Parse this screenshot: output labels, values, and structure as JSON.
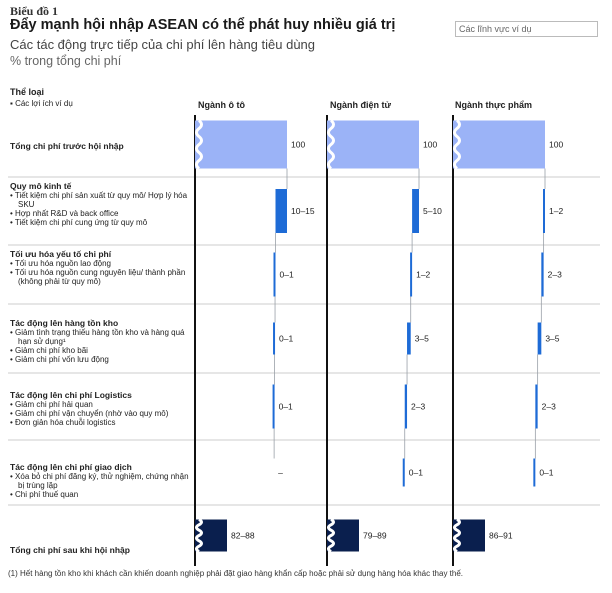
{
  "header": {
    "exhibit": "Biểu đồ 1",
    "title": "Đẩy mạnh hội nhập ASEAN có thể phát huy nhiều giá trị",
    "subtitle": "Các tác động trực tiếp của chi phí lên hàng tiêu dùng",
    "unit": "% trong tổng chi phí",
    "ref_box": "Các lĩnh vực ví dụ"
  },
  "legend": {
    "category": "Thể loại",
    "examples": "Các lợi ích ví dụ"
  },
  "rows": [
    {
      "title": "Tổng chi phí trước hội nhập",
      "bullets": []
    },
    {
      "title": "Quy mô kinh tế",
      "bullets": [
        "Tiết kiệm chi phí sản xuất từ quy mô/ Hợp lý hóa SKU",
        "Hợp nhất R&D và back office",
        "Tiết kiệm chi phí cung ứng từ quy mô"
      ]
    },
    {
      "title": "Tối ưu hóa yếu tố chi phí",
      "bullets": [
        "Tối ưu hóa nguồn lao động",
        "Tối ưu hóa nguồn cung nguyên liệu/ thành phần (không phải từ quy mô)"
      ]
    },
    {
      "title": "Tác động lên hàng tồn kho",
      "bullets": [
        "Giảm tình trạng thiếu hàng tồn kho và hàng quá hạn sử dụng¹",
        "Giảm chi phí kho bãi",
        "Giảm chi phí vốn lưu động"
      ]
    },
    {
      "title": "Tác động lên chi phí Logistics",
      "bullets": [
        "Giảm chi phí hải quan",
        "Giảm chi phí vận chuyển (nhờ vào quy mô)",
        "Đơn giản hóa chuỗi logistics"
      ]
    },
    {
      "title": "Tác động lên chi phí giao dịch",
      "bullets": [
        "Xóa bỏ chi phí đăng ký, thử nghiệm, chứng nhận bị trùng lặp",
        "Chi phí thuế quan"
      ]
    },
    {
      "title": "Tổng chi phí sau khi hội nhập",
      "bullets": []
    }
  ],
  "colors": {
    "start": "#9bb3f7",
    "step": "#1e6bd6",
    "end": "#0a1f4e",
    "axis": "#111111",
    "connector": "#9aa0a8",
    "divider": "#999999"
  },
  "chart_data": {
    "type": "waterfall",
    "categories": [
      "Tổng chi phí trước hội nhập",
      "Quy mô kinh tế",
      "Tối ưu hóa yếu tố chi phí",
      "Tác động lên hàng tồn kho",
      "Tác động lên chi phí Logistics",
      "Tác động lên chi phí giao dịch",
      "Tổng chi phí sau khi hội nhập"
    ],
    "series": [
      {
        "name": "Ngành ô tô",
        "values": [
          100,
          12.5,
          0.5,
          0.5,
          0.5,
          0,
          86
        ],
        "labels": [
          "100",
          "10–15",
          "0–1",
          "0–1",
          "0–1",
          "–",
          "82–88"
        ]
      },
      {
        "name": "Ngành điện tử",
        "values": [
          100,
          7.5,
          1.5,
          4,
          2.5,
          0.5,
          84
        ],
        "labels": [
          "100",
          "5–10",
          "1–2",
          "3–5",
          "2–3",
          "0–1",
          "79–89"
        ]
      },
      {
        "name": "Ngành thực phẩm",
        "values": [
          100,
          1.5,
          2.5,
          4,
          2.5,
          0.5,
          88.5
        ],
        "labels": [
          "100",
          "1–2",
          "2–3",
          "3–5",
          "2–3",
          "0–1",
          "86–91"
        ]
      }
    ],
    "breaks": "axis break on total bars"
  },
  "footnote": "(1) Hết hàng tồn kho khi khách cần khiến doanh nghiệp phải đặt giao hàng khẩn cấp hoặc phải sử dụng hàng hóa khác thay thế."
}
